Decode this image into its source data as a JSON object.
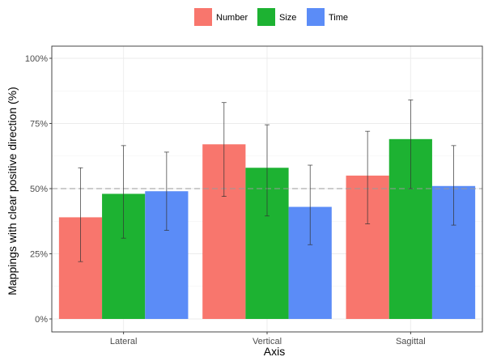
{
  "chart_data": {
    "type": "bar",
    "title": "",
    "xlabel": "Axis",
    "ylabel": "Mappings with clear positive direction (%)",
    "categories": [
      "Lateral",
      "Vertical",
      "Sagittal"
    ],
    "ylim": [
      0,
      1
    ],
    "yticks": [
      0,
      0.25,
      0.5,
      0.75,
      1
    ],
    "ytick_labels": [
      "0%",
      "25%",
      "50%",
      "75%",
      "100%"
    ],
    "reference_line": 0.5,
    "grid": true,
    "legend_position": "top",
    "series": [
      {
        "name": "Number",
        "color": "#F8766D",
        "values": [
          0.39,
          0.67,
          0.55
        ],
        "error_low": [
          0.22,
          0.47,
          0.365
        ],
        "error_high": [
          0.58,
          0.83,
          0.72
        ]
      },
      {
        "name": "Size",
        "color": "#1DB232",
        "values": [
          0.48,
          0.58,
          0.69
        ],
        "error_low": [
          0.31,
          0.395,
          0.5
        ],
        "error_high": [
          0.665,
          0.745,
          0.84
        ]
      },
      {
        "name": "Time",
        "color": "#5B8CF7",
        "values": [
          0.49,
          0.43,
          0.51
        ],
        "error_low": [
          0.34,
          0.285,
          0.36
        ],
        "error_high": [
          0.64,
          0.59,
          0.665
        ]
      }
    ]
  }
}
